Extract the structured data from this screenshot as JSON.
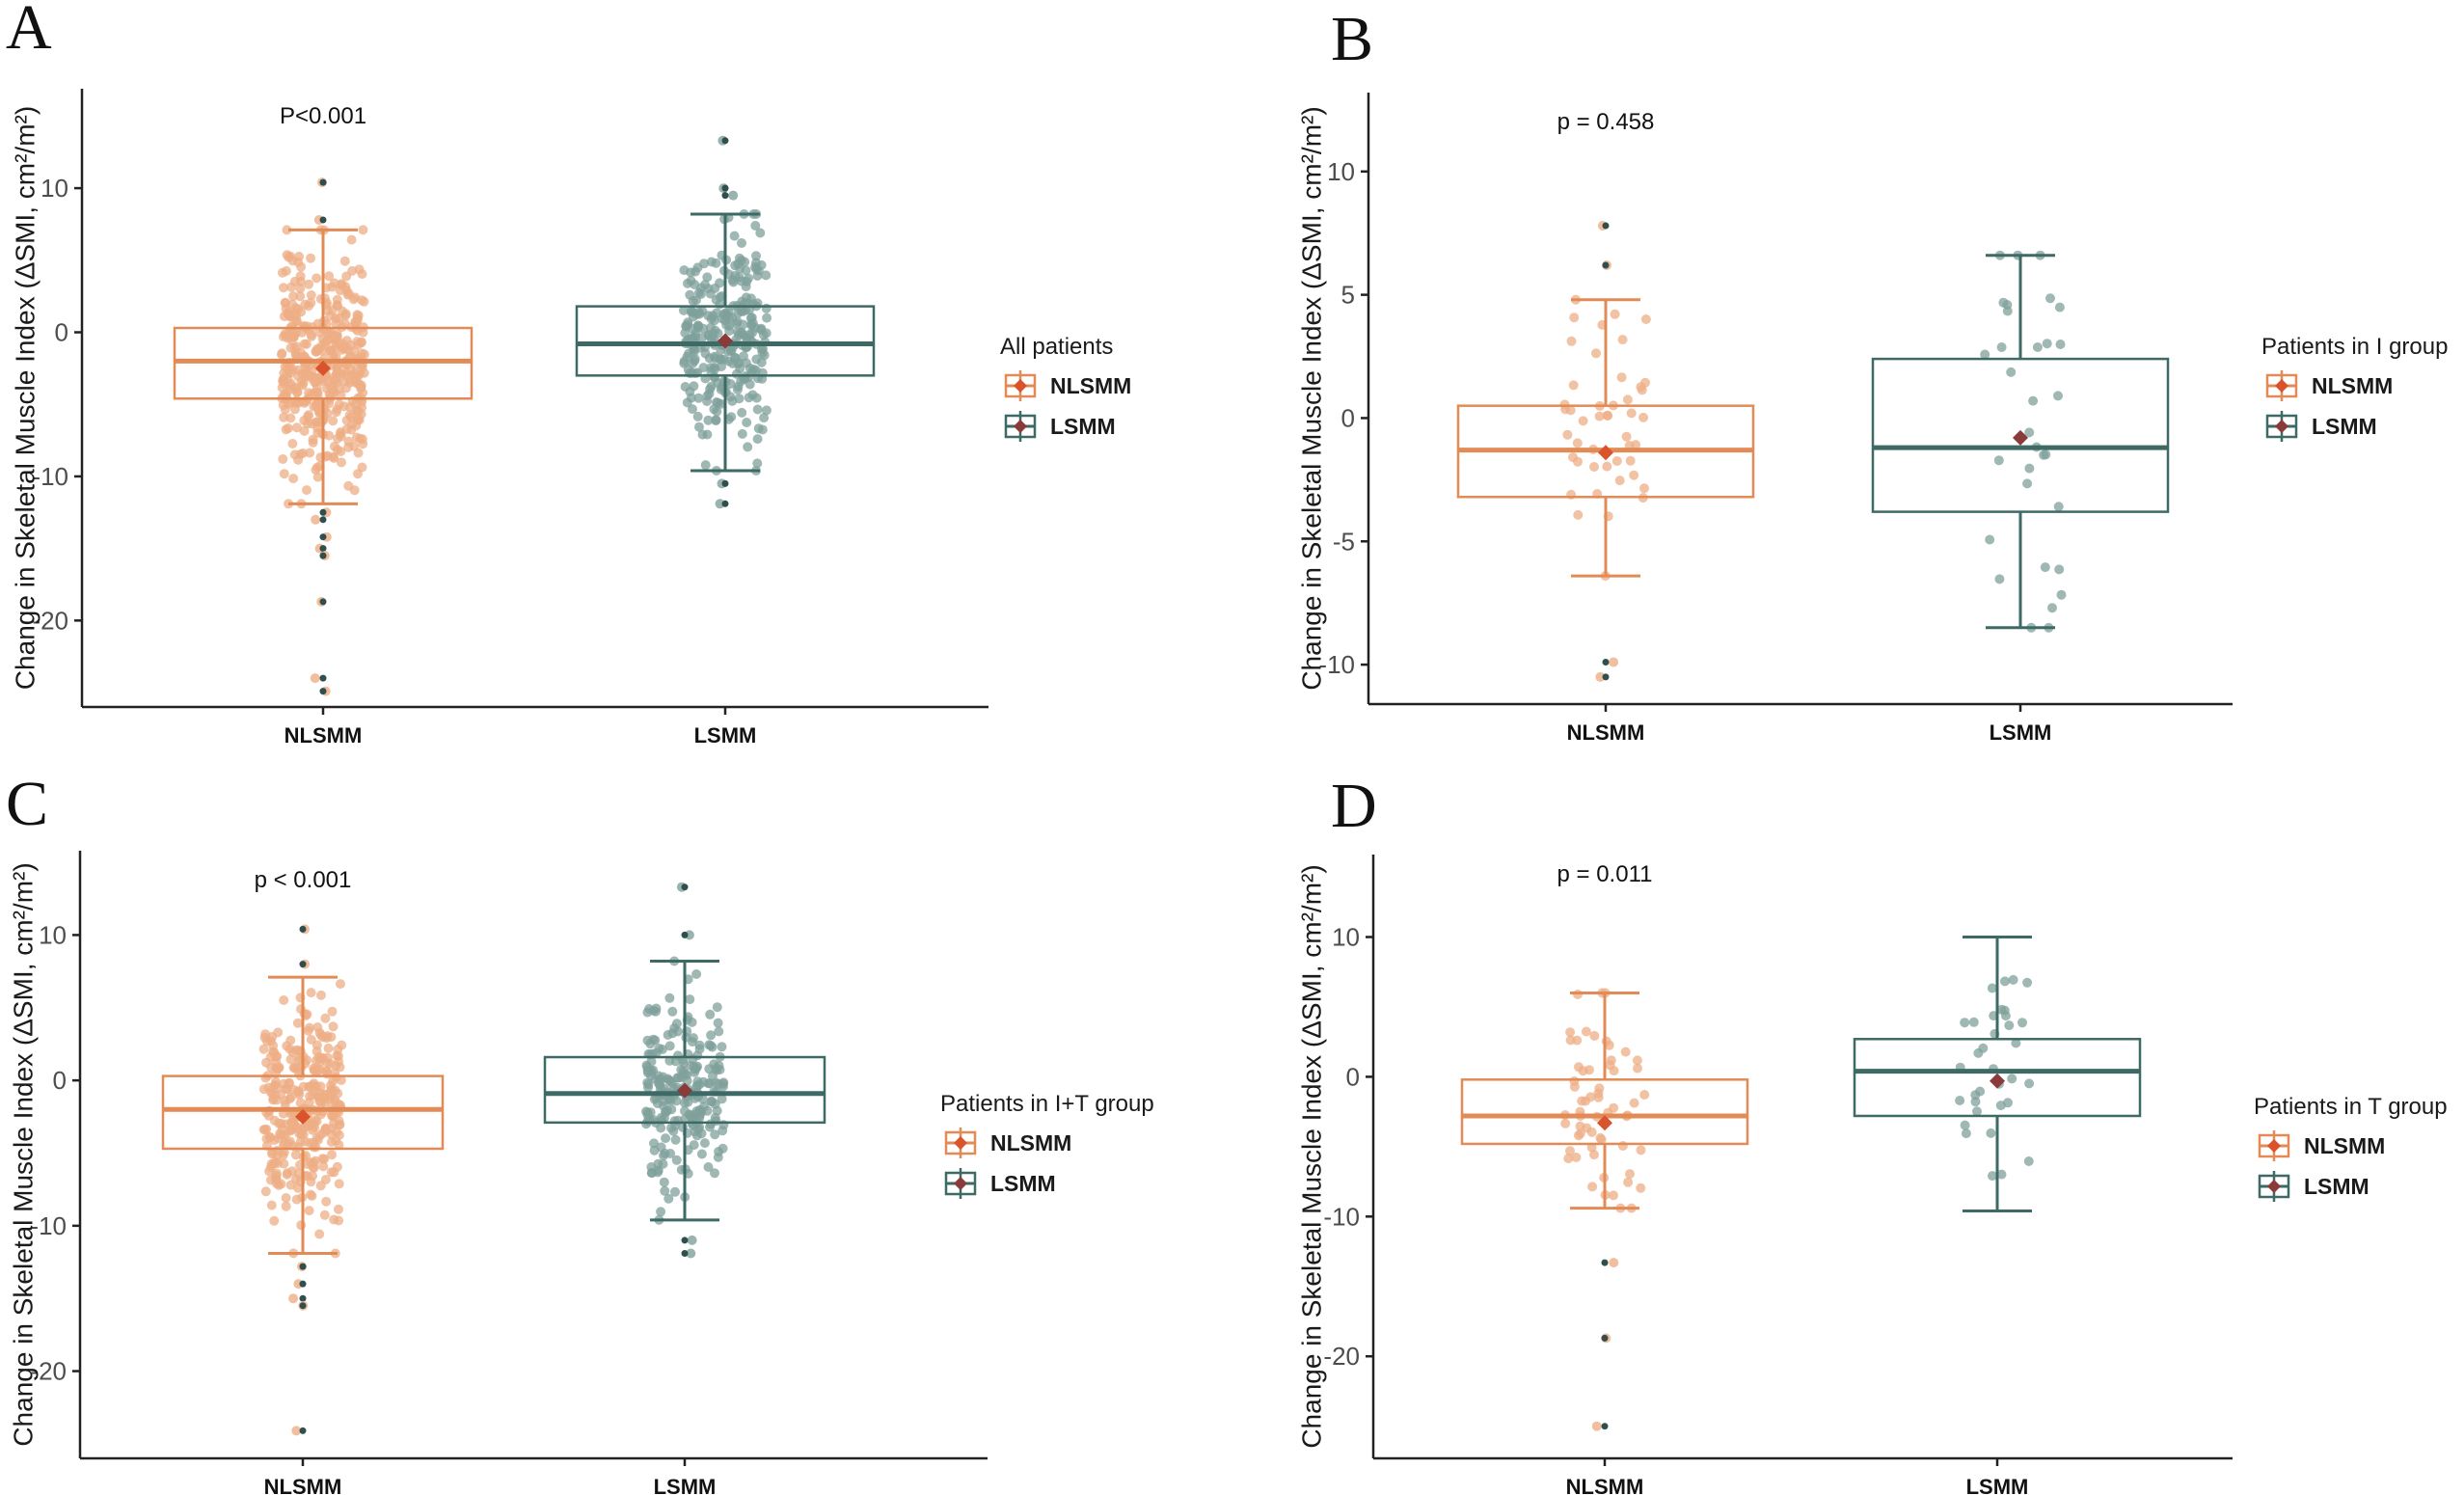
{
  "colors": {
    "NLSMM": "#E28B56",
    "NLSMM_point": "#EDAE86",
    "NLSMM_mean": "#D9532B",
    "LSMM": "#3E6A66",
    "LSMM_point": "#7FA09B",
    "LSMM_mean": "#8B3A3A",
    "outlier": "#2F4F4F"
  },
  "chart_data": [
    {
      "panel": "A",
      "type": "box",
      "pvalue": "P<0.001",
      "ylabel": "Change in Skeletal Muscle Index (ΔSMI, cm²/m²)",
      "legend_title": "All patients",
      "categories": [
        "NLSMM",
        "LSMM"
      ],
      "yticks": [
        10,
        0,
        -10,
        -20
      ],
      "ytick_labels": [
        "10",
        "0",
        "-10",
        "-20"
      ],
      "ylim": [
        -26,
        16.9
      ],
      "n_points": [
        440,
        300
      ],
      "series": [
        {
          "name": "NLSMM",
          "q1": -4.6,
          "median": -2.0,
          "q3": 0.3,
          "mean": -2.5,
          "whisker_low": -11.9,
          "whisker_high": 7.1,
          "outliers": [
            10.4,
            7.8,
            -12.5,
            -13.0,
            -14.2,
            -15.0,
            -15.5,
            -18.7,
            -24.0,
            -24.9
          ]
        },
        {
          "name": "LSMM",
          "q1": -3.0,
          "median": -0.8,
          "q3": 1.8,
          "mean": -0.6,
          "whisker_low": -9.6,
          "whisker_high": 8.2,
          "outliers": [
            13.3,
            10.0,
            9.5,
            -10.5,
            -11.9
          ]
        }
      ]
    },
    {
      "panel": "B",
      "type": "box",
      "pvalue": "p = 0.458",
      "ylabel": "Change in Skeletal Muscle Index (ΔSMI, cm²/m²)",
      "legend_title": "Patients in I group",
      "categories": [
        "NLSMM",
        "LSMM"
      ],
      "yticks": [
        10,
        5,
        0,
        -5,
        -10
      ],
      "ytick_labels": [
        "10",
        "5",
        "0",
        "-5",
        "-10"
      ],
      "ylim": [
        -11.6,
        13.2
      ],
      "n_points": [
        46,
        32
      ],
      "series": [
        {
          "name": "NLSMM",
          "q1": -3.2,
          "median": -1.3,
          "q3": 0.5,
          "mean": -1.4,
          "whisker_low": -6.4,
          "whisker_high": 4.8,
          "outliers": [
            7.8,
            6.2,
            -9.9,
            -10.5
          ]
        },
        {
          "name": "LSMM",
          "q1": -3.8,
          "median": -1.2,
          "q3": 2.4,
          "mean": -0.8,
          "whisker_low": -8.5,
          "whisker_high": 6.6,
          "outliers": []
        }
      ]
    },
    {
      "panel": "C",
      "type": "box",
      "pvalue": "p < 0.001",
      "ylabel": "Change in Skeletal Muscle Index (ΔSMI, cm²/m²)",
      "legend_title": "Patients in I+T group",
      "categories": [
        "NLSMM",
        "LSMM"
      ],
      "yticks": [
        10,
        0,
        -10,
        -20
      ],
      "ytick_labels": [
        "10",
        "0",
        "-10",
        "-20"
      ],
      "ylim": [
        -26,
        15.8
      ],
      "n_points": [
        330,
        240
      ],
      "series": [
        {
          "name": "NLSMM",
          "q1": -4.7,
          "median": -2.0,
          "q3": 0.3,
          "mean": -2.5,
          "whisker_low": -11.9,
          "whisker_high": 7.1,
          "outliers": [
            10.4,
            8.0,
            -12.8,
            -14.0,
            -15.0,
            -15.5,
            -24.1
          ]
        },
        {
          "name": "LSMM",
          "q1": -2.9,
          "median": -0.9,
          "q3": 1.6,
          "mean": -0.7,
          "whisker_low": -9.6,
          "whisker_high": 8.2,
          "outliers": [
            13.3,
            10.0,
            -11.0,
            -11.9
          ]
        }
      ]
    },
    {
      "panel": "D",
      "type": "box",
      "pvalue": "p = 0.011",
      "ylabel": "Change in Skeletal Muscle Index (ΔSMI, cm²/m²)",
      "legend_title": "Patients in T group",
      "categories": [
        "NLSMM",
        "LSMM"
      ],
      "yticks": [
        10,
        0,
        -10,
        -20
      ],
      "ytick_labels": [
        "10",
        "0",
        "-10",
        "-20"
      ],
      "ylim": [
        -27.3,
        15.9
      ],
      "n_points": [
        62,
        34
      ],
      "series": [
        {
          "name": "NLSMM",
          "q1": -4.8,
          "median": -2.8,
          "q3": -0.2,
          "mean": -3.3,
          "whisker_low": -9.4,
          "whisker_high": 6.0,
          "outliers": [
            -13.3,
            -18.7,
            -25.0
          ]
        },
        {
          "name": "LSMM",
          "q1": -2.8,
          "median": 0.4,
          "q3": 2.7,
          "mean": -0.3,
          "whisker_low": -9.6,
          "whisker_high": 10.0,
          "outliers": []
        }
      ]
    }
  ]
}
